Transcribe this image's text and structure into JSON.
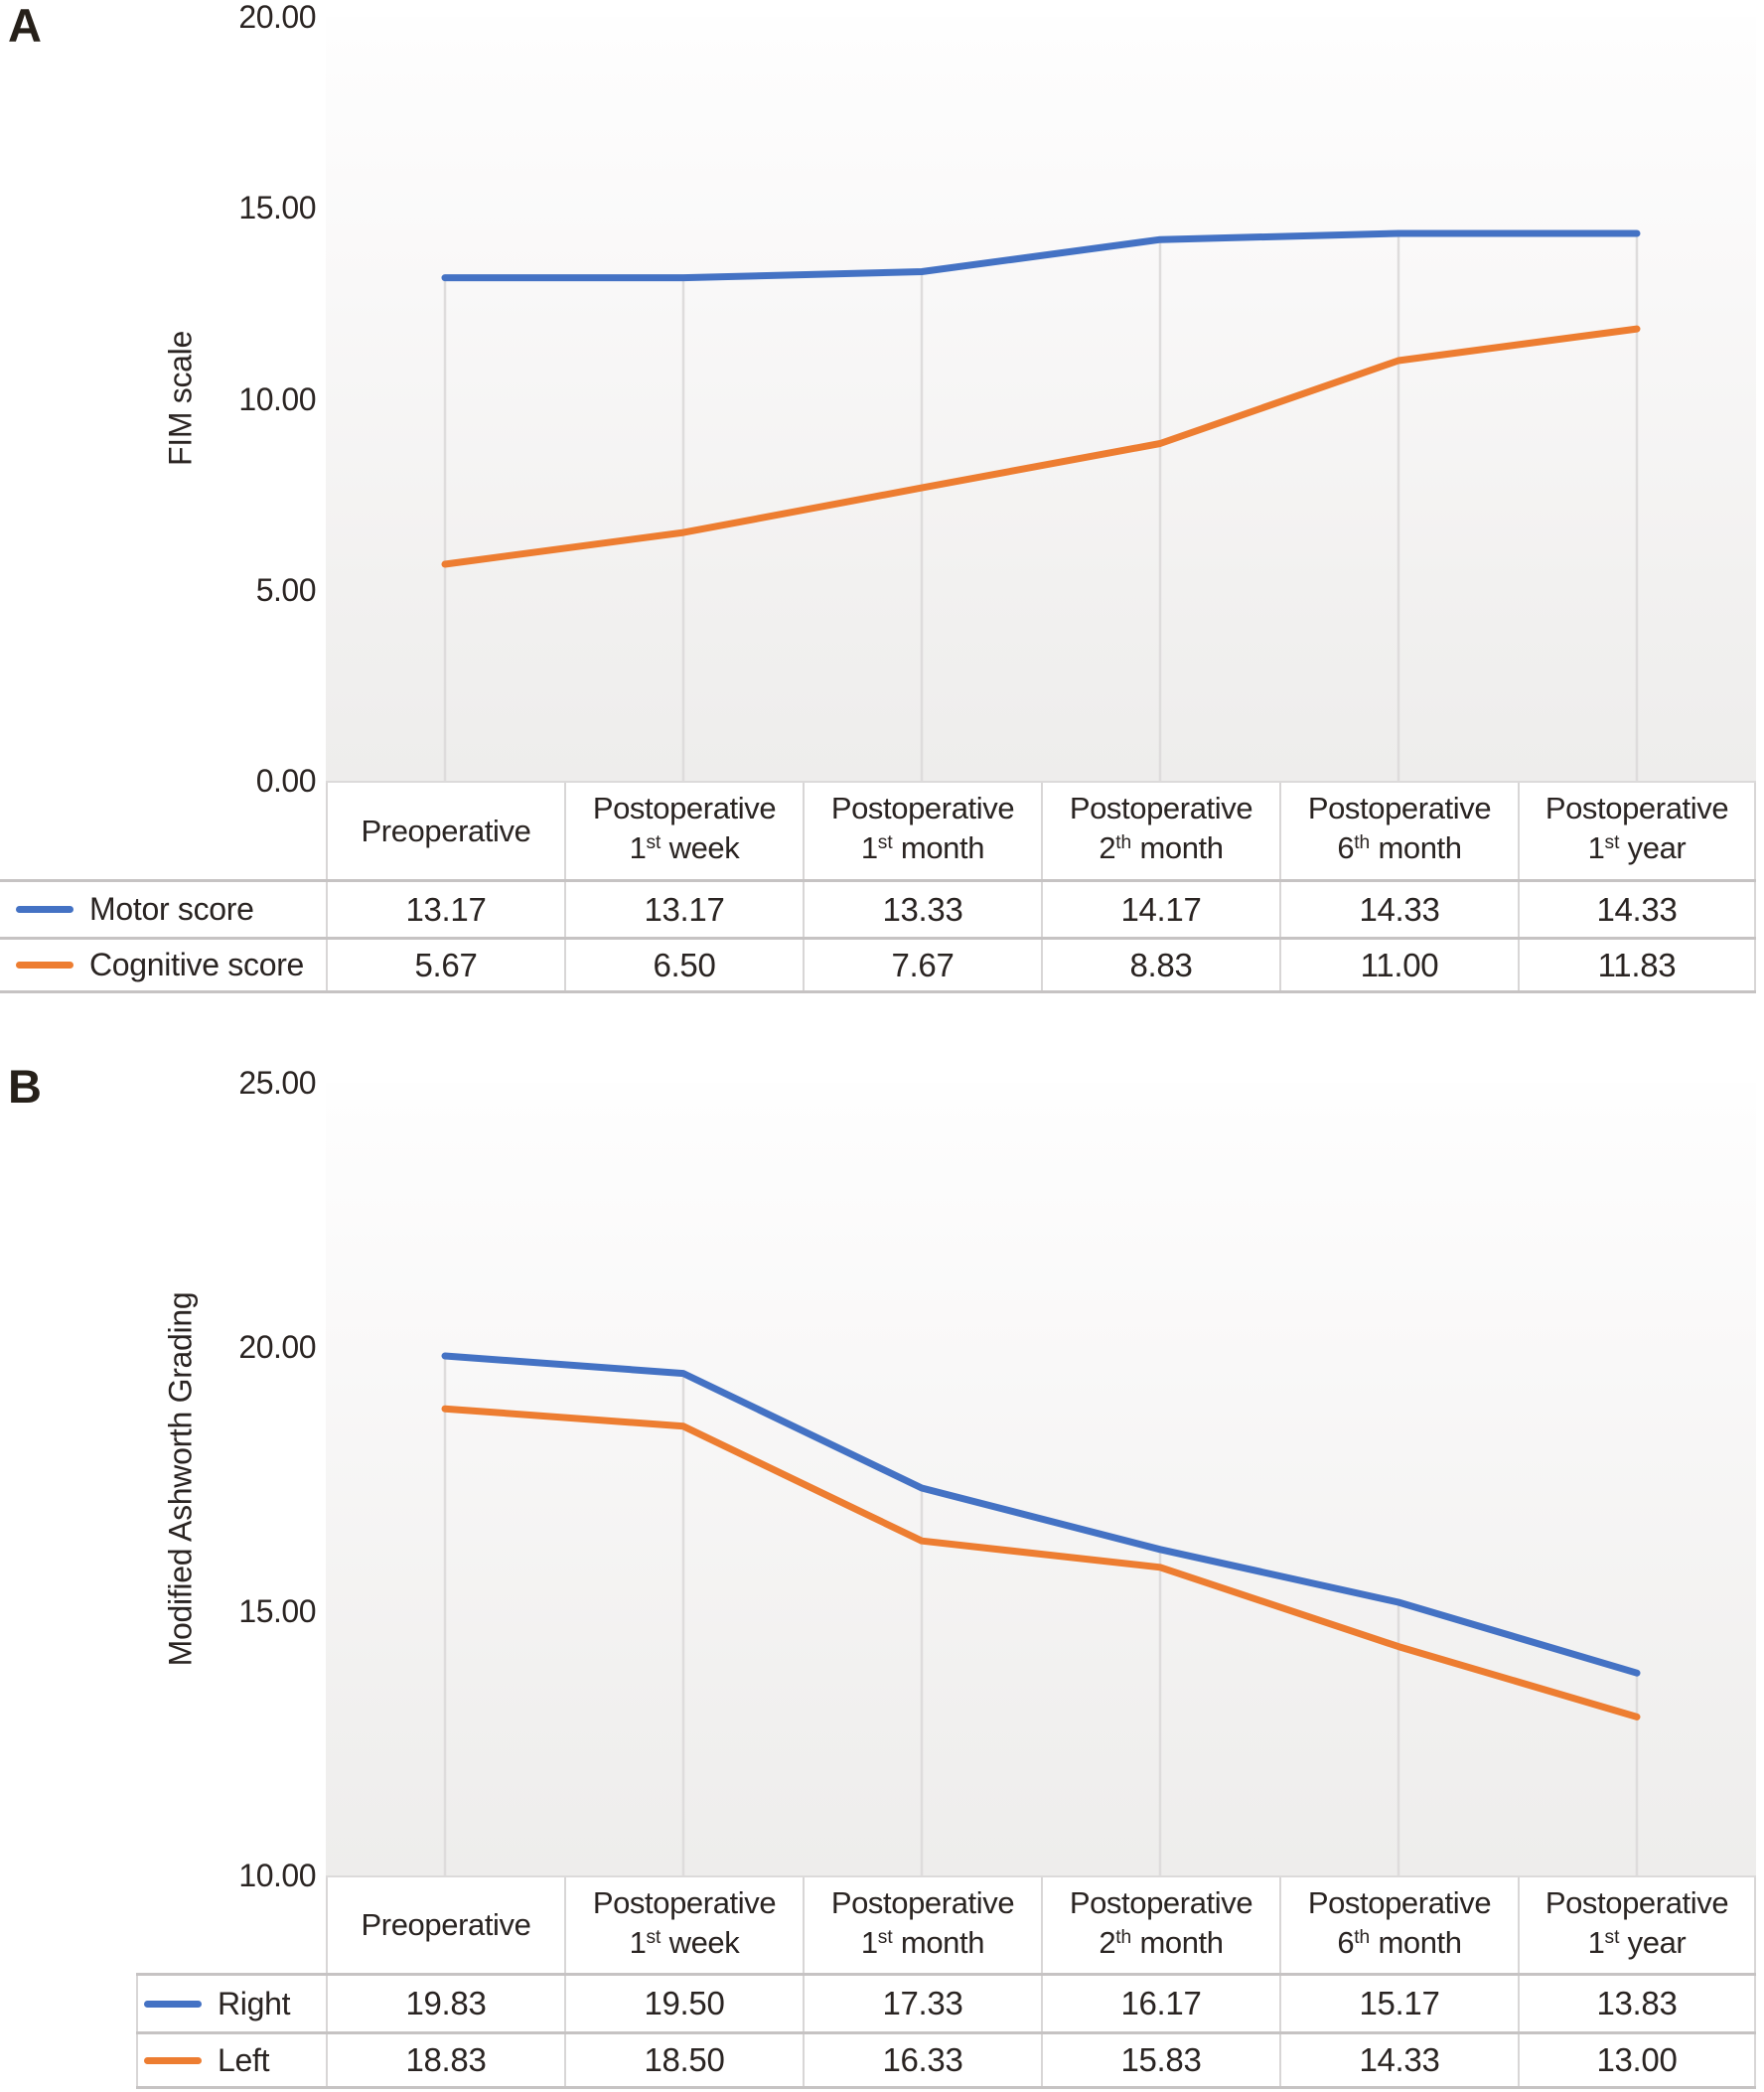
{
  "figure": {
    "panel_a_label": "A",
    "panel_b_label": "B"
  },
  "colors": {
    "series_blue": "#4472c4",
    "series_orange": "#ed7d31",
    "drop_line": "#dedcdc",
    "table_border_strong": "#c6c3c3",
    "table_border_light": "#d8d6d6",
    "text": "#2a2422"
  },
  "chart_data": [
    {
      "type": "line",
      "panel_label": "A",
      "title": "",
      "xlabel": "",
      "ylabel": "FIM scale",
      "ylim": [
        0,
        20
      ],
      "ytick_step": 5,
      "yticks": [
        "20.00",
        "15.00",
        "10.00",
        "5.00",
        "0.00"
      ],
      "grid": "vertical-drop-lines",
      "legend_position": "table-left-column",
      "categories_plain": [
        "Preoperative",
        "Postoperative 1st week",
        "Postoperative 1st month",
        "Postoperative 2th month",
        "Postoperative 6th month",
        "Postoperative 1st year"
      ],
      "categories": [
        {
          "line1": "Preoperative",
          "num": "",
          "sup": "",
          "rest": ""
        },
        {
          "line1": "Postoperative",
          "num": "1",
          "sup": "st",
          "rest": "week"
        },
        {
          "line1": "Postoperative",
          "num": "1",
          "sup": "st",
          "rest": "month"
        },
        {
          "line1": "Postoperative",
          "num": "2",
          "sup": "th",
          "rest": "month"
        },
        {
          "line1": "Postoperative",
          "num": "6",
          "sup": "th",
          "rest": "month"
        },
        {
          "line1": "Postoperative",
          "num": "1",
          "sup": "st",
          "rest": "year"
        }
      ],
      "series": [
        {
          "name": "Motor score",
          "color": "#4472c4",
          "values": [
            13.17,
            13.17,
            13.33,
            14.17,
            14.33,
            14.33
          ],
          "labels": [
            "13.17",
            "13.17",
            "13.33",
            "14.17",
            "14.33",
            "14.33"
          ]
        },
        {
          "name": "Cognitive score",
          "color": "#ed7d31",
          "values": [
            5.67,
            6.5,
            7.67,
            8.83,
            11.0,
            11.83
          ],
          "labels": [
            "5.67",
            "6.50",
            "7.67",
            "8.83",
            "11.00",
            "11.83"
          ]
        }
      ]
    },
    {
      "type": "line",
      "panel_label": "B",
      "title": "",
      "xlabel": "",
      "ylabel": "Modified Ashworth Grading",
      "ylim": [
        10,
        25
      ],
      "ytick_step": 5,
      "yticks": [
        "25.00",
        "20.00",
        "15.00",
        "10.00"
      ],
      "grid": "vertical-drop-lines",
      "legend_position": "table-left-column",
      "categories_plain": [
        "Preoperative",
        "Postoperative 1st week",
        "Postoperative 1st month",
        "Postoperative 2th month",
        "Postoperative 6th month",
        "Postoperative 1st year"
      ],
      "categories": [
        {
          "line1": "Preoperative",
          "num": "",
          "sup": "",
          "rest": ""
        },
        {
          "line1": "Postoperative",
          "num": "1",
          "sup": "st",
          "rest": "week"
        },
        {
          "line1": "Postoperative",
          "num": "1",
          "sup": "st",
          "rest": "month"
        },
        {
          "line1": "Postoperative",
          "num": "2",
          "sup": "th",
          "rest": "month"
        },
        {
          "line1": "Postoperative",
          "num": "6",
          "sup": "th",
          "rest": "month"
        },
        {
          "line1": "Postoperative",
          "num": "1",
          "sup": "st",
          "rest": "year"
        }
      ],
      "series": [
        {
          "name": "Right",
          "color": "#4472c4",
          "values": [
            19.83,
            19.5,
            17.33,
            16.17,
            15.17,
            13.83
          ],
          "labels": [
            "19.83",
            "19.50",
            "17.33",
            "16.17",
            "15.17",
            "13.83"
          ]
        },
        {
          "name": "Left",
          "color": "#ed7d31",
          "values": [
            18.83,
            18.5,
            16.33,
            15.83,
            14.33,
            13.0
          ],
          "labels": [
            "18.83",
            "18.50",
            "16.33",
            "15.83",
            "14.33",
            "13.00"
          ]
        }
      ]
    }
  ]
}
